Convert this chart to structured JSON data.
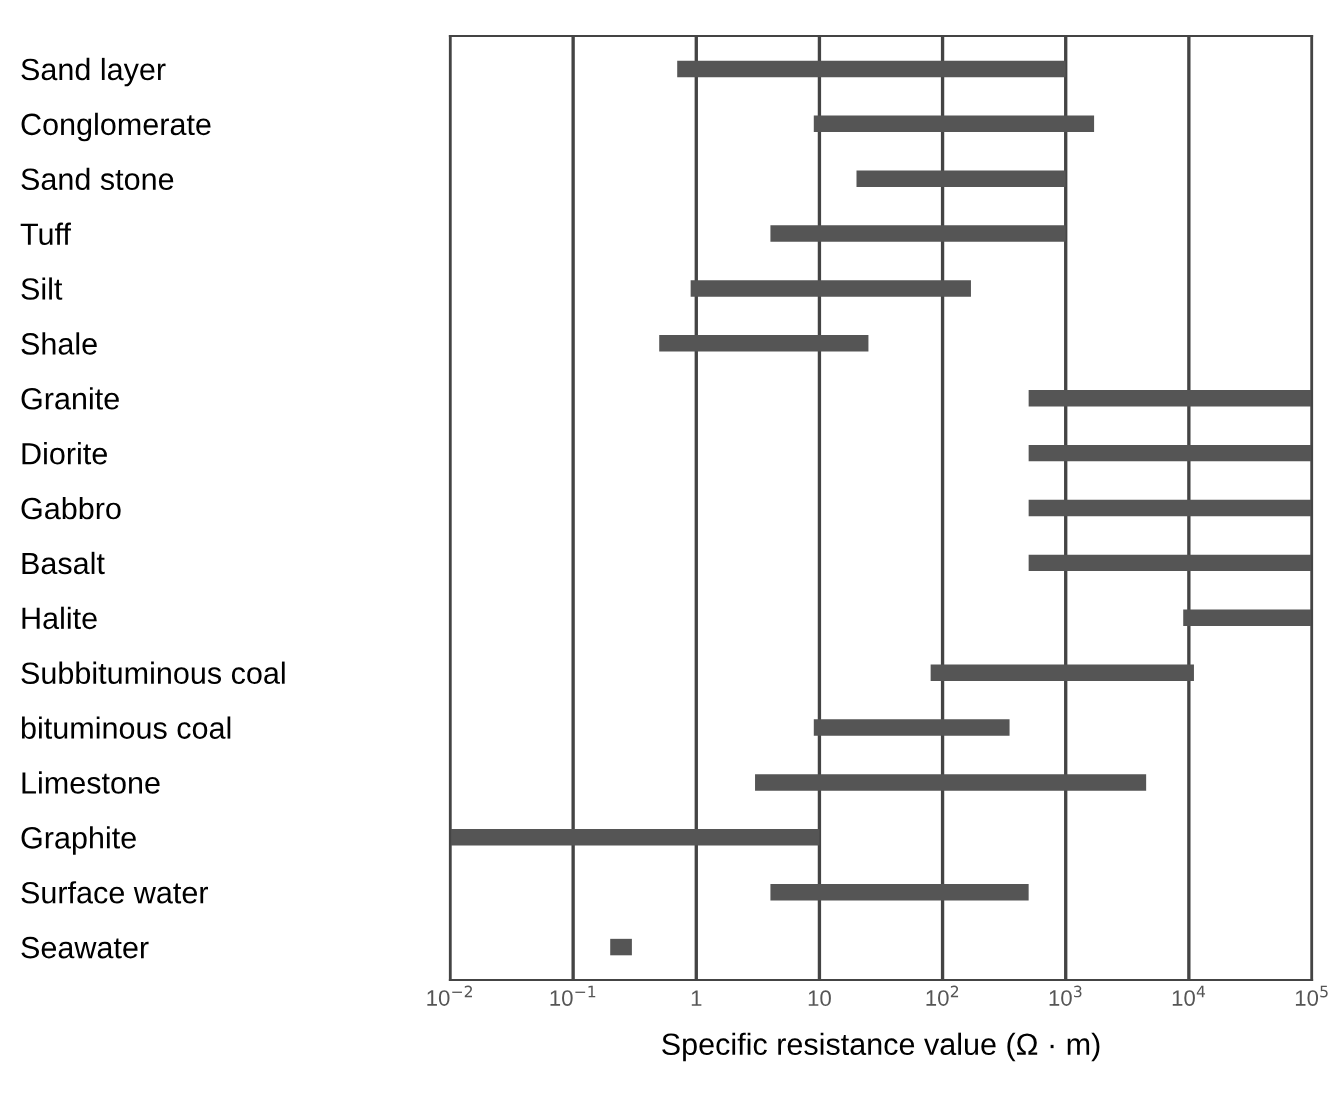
{
  "chart_data": {
    "type": "bar",
    "orientation": "horizontal",
    "log": "x",
    "xlabel": "Specific resistance value (Ω · m)",
    "categories": [
      "Sand layer",
      "Conglomerate",
      "Sand stone",
      "Tuff",
      "Silt",
      "Shale",
      "Granite",
      "Diorite",
      "Gabbro",
      "Basalt",
      "Halite",
      "Subbituminous coal",
      "bituminous coal",
      "Limestone",
      "Graphite",
      "Surface water",
      "Seawater"
    ],
    "base": [
      0.7,
      9,
      20,
      4,
      0.9,
      0.5,
      500,
      500,
      500,
      500,
      9000,
      80,
      9,
      3,
      0.01,
      4,
      0.2
    ],
    "values": [
      999.3,
      1691,
      980,
      996,
      169.1,
      24.5,
      99500,
      99500,
      99500,
      99500,
      91000,
      10920,
      341,
      4497,
      9.99,
      496,
      0.1
    ],
    "color": "#555555",
    "xlim": [
      0.01,
      100000
    ],
    "xticks": [
      {
        "value": 0.01,
        "label": "10$^{−2}$"
      },
      {
        "value": 0.1,
        "label": "10$^{−1}$"
      },
      1,
      10,
      {
        "value": 100,
        "label": "10$^{2}$"
      },
      {
        "value": 1000,
        "label": "10$^{3}$"
      },
      {
        "value": 10000,
        "label": "10$^{4}$"
      },
      {
        "value": 100000,
        "label": "10$^{5}$"
      }
    ],
    "grid": "x"
  }
}
